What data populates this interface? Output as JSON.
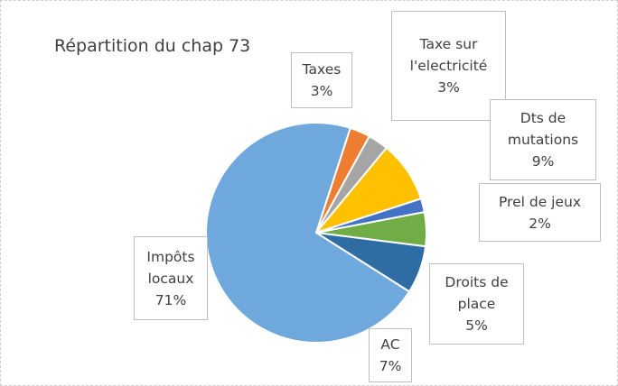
{
  "chart_data": {
    "type": "pie",
    "title": "Répartition du chap 73",
    "start_angle": 18,
    "categories": [
      "Taxes",
      "Taxe sur l'electricité",
      "Dts de mutations",
      "Prel de jeux",
      "Droits de place",
      "AC",
      "Impôts locaux"
    ],
    "values": [
      3,
      3,
      9,
      2,
      5,
      7,
      71
    ],
    "value_labels": [
      "3%",
      "3%",
      "9%",
      "2%",
      "5%",
      "7%",
      "71%"
    ],
    "colors": [
      "#ED7D31",
      "#A5A5A5",
      "#FFC000",
      "#4472C4",
      "#70AD47",
      "#2E6DA4",
      "#6FA8DC"
    ]
  }
}
